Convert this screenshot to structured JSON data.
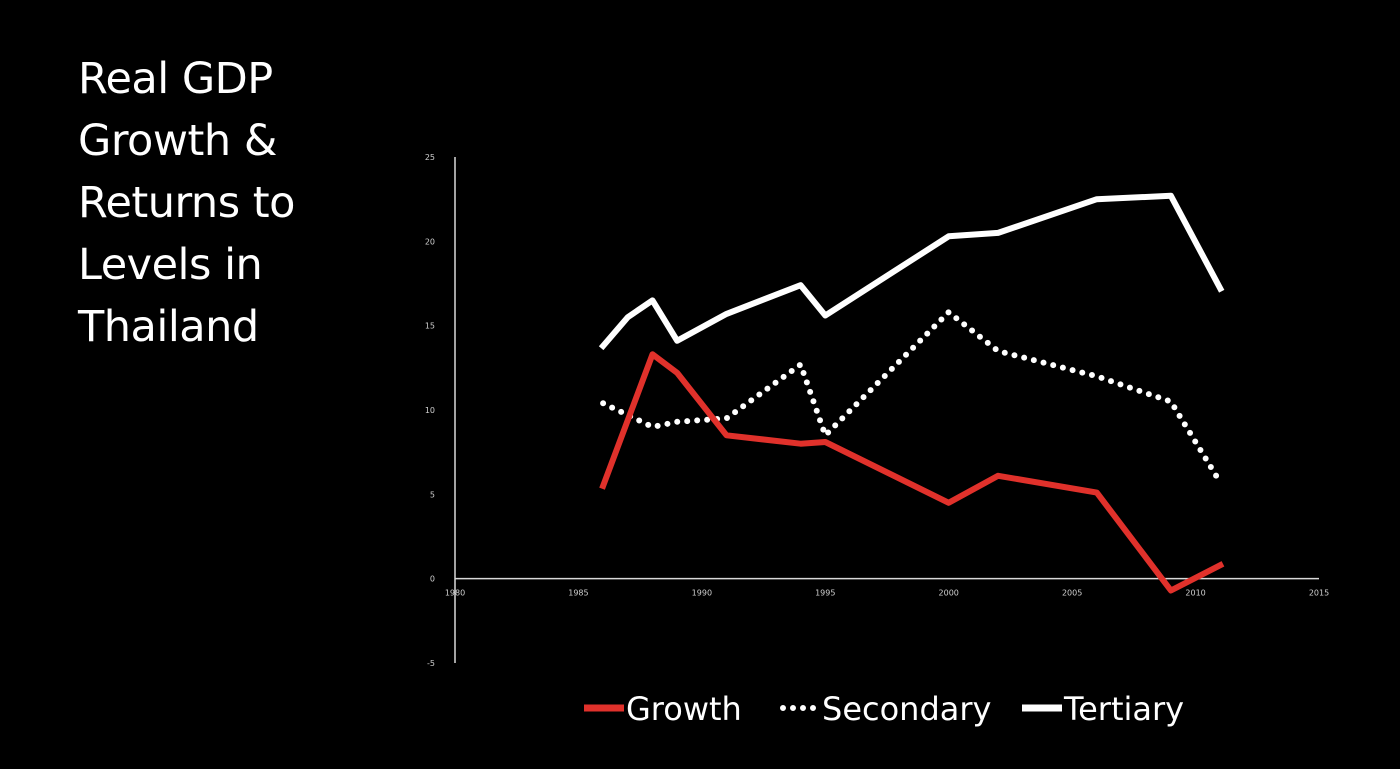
{
  "title_lines": [
    "Real GDP",
    "Growth &",
    "Returns to",
    "Levels in",
    "Thailand"
  ],
  "colors": {
    "background": "#000000",
    "axis": "#d9d9d9",
    "growth": "#e0312b",
    "secondary": "#ffffff",
    "tertiary": "#ffffff"
  },
  "chart_data": {
    "type": "line",
    "title": "Real GDP Growth & Returns to Levels in Thailand",
    "xlabel": "",
    "ylabel": "",
    "xlim": [
      1980,
      2015
    ],
    "ylim": [
      -5,
      25
    ],
    "x_ticks": [
      1980,
      1985,
      1990,
      1995,
      2000,
      2005,
      2010,
      2015
    ],
    "y_ticks": [
      -5,
      0,
      5,
      10,
      15,
      20,
      25
    ],
    "grid": false,
    "legend_position": "bottom",
    "series": [
      {
        "name": "Growth",
        "style": "solid",
        "color": "#e0312b",
        "points": [
          [
            1986,
            5.5
          ],
          [
            1988,
            13.3
          ],
          [
            1989,
            12.2
          ],
          [
            1991,
            8.5
          ],
          [
            1994,
            8.0
          ],
          [
            1995,
            8.1
          ],
          [
            2000,
            4.5
          ],
          [
            2002,
            6.1
          ],
          [
            2006,
            5.1
          ],
          [
            2009,
            -0.7
          ],
          [
            2011,
            0.8
          ]
        ]
      },
      {
        "name": "Secondary",
        "style": "dotted",
        "color": "#ffffff",
        "points": [
          [
            1986,
            10.4
          ],
          [
            1988,
            9.0
          ],
          [
            1989,
            9.3
          ],
          [
            1991,
            9.5
          ],
          [
            1994,
            12.7
          ],
          [
            1995,
            8.5
          ],
          [
            2000,
            15.8
          ],
          [
            2002,
            13.5
          ],
          [
            2006,
            12.0
          ],
          [
            2009,
            10.5
          ],
          [
            2011,
            5.7
          ]
        ]
      },
      {
        "name": "Tertiary",
        "style": "solid",
        "color": "#ffffff",
        "points": [
          [
            1986,
            13.8
          ],
          [
            1987,
            15.5
          ],
          [
            1988,
            16.5
          ],
          [
            1989,
            14.1
          ],
          [
            1991,
            15.7
          ],
          [
            1994,
            17.4
          ],
          [
            1995,
            15.6
          ],
          [
            2000,
            20.3
          ],
          [
            2002,
            20.5
          ],
          [
            2006,
            22.5
          ],
          [
            2009,
            22.7
          ],
          [
            2011,
            17.2
          ]
        ]
      }
    ]
  }
}
